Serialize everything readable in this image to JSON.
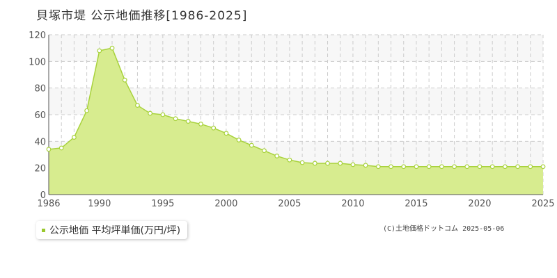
{
  "chart_data": {
    "type": "area",
    "title": "貝塚市堤 公示地価推移[1986-2025]",
    "x": [
      1986,
      1987,
      1988,
      1989,
      1990,
      1991,
      1992,
      1993,
      1994,
      1995,
      1996,
      1997,
      1998,
      1999,
      2000,
      2001,
      2002,
      2003,
      2004,
      2005,
      2006,
      2007,
      2008,
      2009,
      2010,
      2011,
      2012,
      2013,
      2014,
      2015,
      2016,
      2017,
      2018,
      2019,
      2020,
      2021,
      2022,
      2023,
      2024,
      2025
    ],
    "series": [
      {
        "name": "公示地価 平均坪単価(万円/坪)",
        "values": [
          34,
          35,
          43,
          63,
          108,
          110,
          86,
          67,
          61,
          60,
          57,
          55,
          53,
          50,
          46,
          41,
          37,
          33,
          29,
          26,
          24,
          23.5,
          23.5,
          23.5,
          22.5,
          22,
          21,
          21,
          21,
          21,
          21,
          21,
          21,
          21,
          21,
          21,
          21,
          21,
          21,
          21
        ]
      }
    ],
    "xlim": [
      1986,
      2025
    ],
    "ylim": [
      0,
      120
    ],
    "x_ticks": [
      1986,
      1990,
      1995,
      2000,
      2005,
      2010,
      2015,
      2020,
      2025
    ],
    "y_ticks": [
      0,
      20,
      40,
      60,
      80,
      100,
      120
    ],
    "grid": true,
    "legend_position": "bottom-left",
    "colors": {
      "fill": "#d7ec8f",
      "line": "#a8d23c",
      "marker_fill": "#ffffff",
      "legend_swatch": "#9ac82e",
      "grid": "#cccccc",
      "band": "#f7f7f7"
    }
  },
  "credit": "(C)土地価格ドットコム 2025-05-06"
}
